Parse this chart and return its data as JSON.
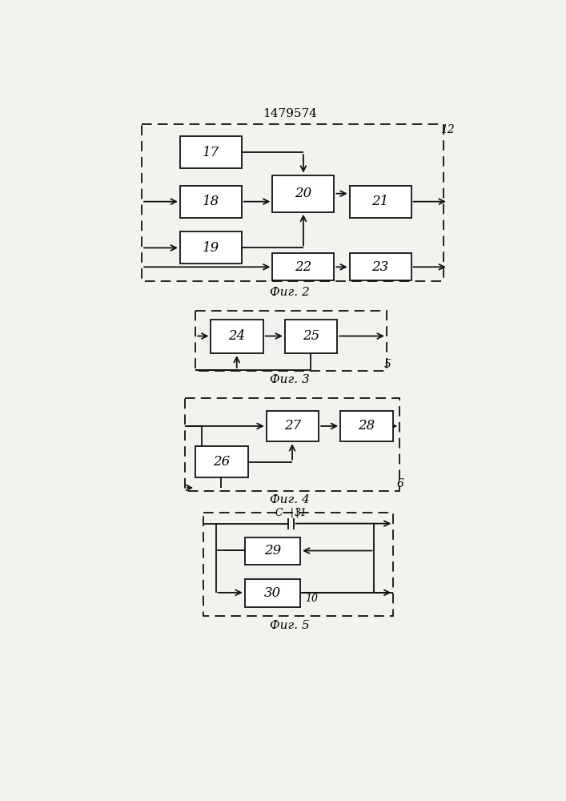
{
  "title": "1479574",
  "bg_color": "#f2f2ee",
  "box_color": "#ffffff",
  "lc": "#111111",
  "fig2_caption": "Фиг. 2",
  "fig3_caption": "Фиг. 3",
  "fig4_caption": "Фиг. 4",
  "fig5_caption": "Фиг. 5",
  "fig2_label": "12",
  "fig3_label": "5",
  "fig4_label": "6"
}
